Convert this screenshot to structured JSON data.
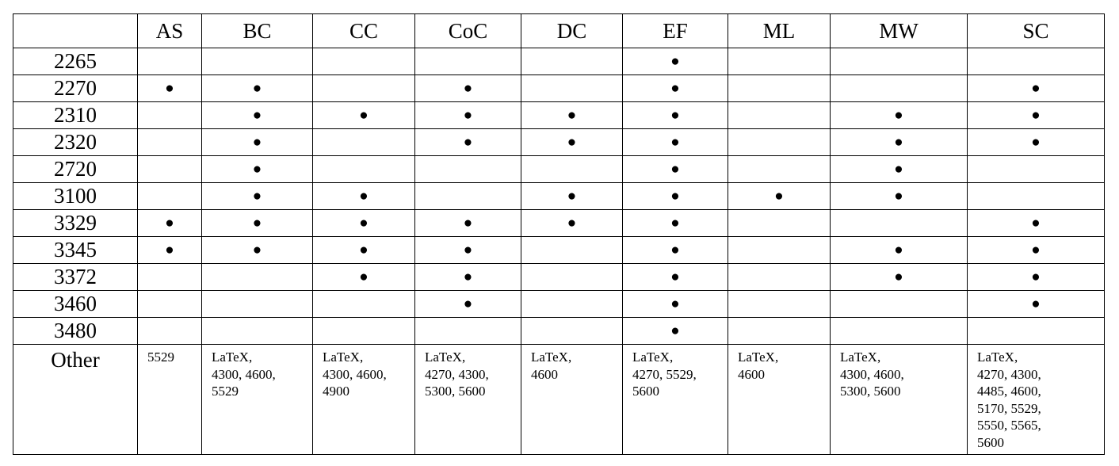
{
  "table": {
    "columns": [
      "AS",
      "BC",
      "CC",
      "CoC",
      "DC",
      "EF",
      "ML",
      "MW",
      "SC"
    ],
    "rows": [
      {
        "label": "2265",
        "cells": [
          null,
          null,
          null,
          null,
          null,
          "●",
          null,
          null,
          null
        ]
      },
      {
        "label": "2270",
        "cells": [
          "●",
          "●",
          null,
          "●",
          null,
          "●",
          null,
          null,
          "●"
        ]
      },
      {
        "label": "2310",
        "cells": [
          null,
          "●",
          "●",
          "●",
          "●",
          "●",
          null,
          "●",
          "●"
        ]
      },
      {
        "label": "2320",
        "cells": [
          null,
          "●",
          null,
          "●",
          "●",
          "●",
          null,
          "●",
          "●"
        ]
      },
      {
        "label": "2720",
        "cells": [
          null,
          "●",
          null,
          null,
          null,
          "●",
          null,
          "●",
          null
        ]
      },
      {
        "label": "3100",
        "cells": [
          null,
          "●",
          "●",
          null,
          "●",
          "●",
          "●",
          "●",
          null
        ]
      },
      {
        "label": "3329",
        "cells": [
          "●",
          "●",
          "●",
          "●",
          "●",
          "●",
          null,
          null,
          "●"
        ]
      },
      {
        "label": "3345",
        "cells": [
          "●",
          "●",
          "●",
          "●",
          null,
          "●",
          null,
          "●",
          "●"
        ]
      },
      {
        "label": "3372",
        "cells": [
          null,
          null,
          "●",
          "●",
          null,
          "●",
          null,
          "●",
          "●"
        ]
      },
      {
        "label": "3460",
        "cells": [
          null,
          null,
          null,
          "●",
          null,
          "●",
          null,
          null,
          "●"
        ]
      },
      {
        "label": "3480",
        "cells": [
          null,
          null,
          null,
          null,
          null,
          "●",
          null,
          null,
          null
        ]
      },
      {
        "label": "Other",
        "cells": [
          "5529",
          "LaTeX,\n4300, 4600,\n5529",
          "LaTeX,\n4300, 4600,\n4900",
          "LaTeX,\n4270, 4300,\n5300, 5600",
          "LaTeX,\n4600",
          "LaTeX,\n4270, 5529,\n5600",
          "LaTeX,\n4600",
          "LaTeX,\n4300, 4600,\n5300, 5600",
          "LaTeX,\n4270, 4300,\n4485, 4600,\n5170, 5529,\n5550, 5565,\n5600"
        ]
      }
    ]
  }
}
